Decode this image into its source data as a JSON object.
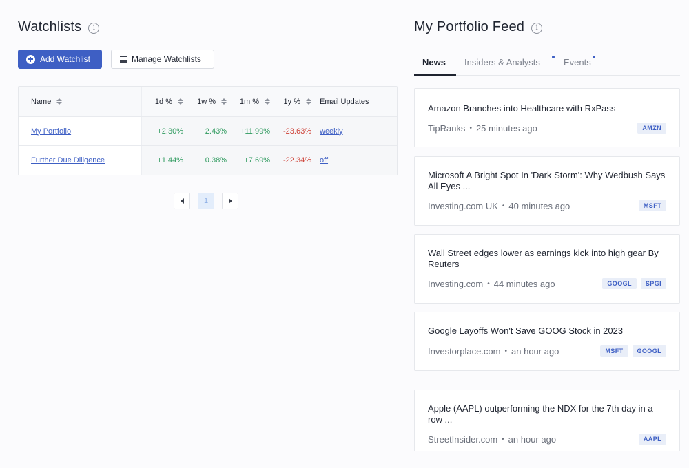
{
  "watchlists": {
    "title": "Watchlists",
    "add_button": "Add Watchlist",
    "manage_button": "Manage Watchlists",
    "columns": [
      "Name",
      "1d %",
      "1w %",
      "1m %",
      "1y %",
      "Email Updates"
    ],
    "rows": [
      {
        "name": "My Portfolio",
        "d1": "+2.30%",
        "w1": "+2.43%",
        "m1": "+11.99%",
        "y1": "-23.63%",
        "email": "weekly"
      },
      {
        "name": "Further Due Diligence",
        "d1": "+1.44%",
        "w1": "+0.38%",
        "m1": "+7.69%",
        "y1": "-22.34%",
        "email": "off"
      }
    ],
    "pagination": {
      "current_page": "1"
    }
  },
  "feed": {
    "title": "My Portfolio Feed",
    "tabs": [
      "News",
      "Insiders & Analysts",
      "Events"
    ],
    "active_tab": "News",
    "items": [
      {
        "title": "Amazon Branches into Healthcare with RxPass",
        "source": "TipRanks",
        "time": "25 minutes ago",
        "tickers": [
          "AMZN"
        ]
      },
      {
        "title": "Microsoft A Bright Spot In 'Dark Storm': Why Wedbush Says All Eyes ...",
        "source": "Investing.com UK",
        "time": "40 minutes ago",
        "tickers": [
          "MSFT"
        ]
      },
      {
        "title": "Wall Street edges lower as earnings kick into high gear By Reuters",
        "source": "Investing.com",
        "time": "44 minutes ago",
        "tickers": [
          "GOOGL",
          "SPGI"
        ]
      },
      {
        "title": "Google Layoffs Won't Save GOOG Stock in 2023",
        "source": "Investorplace.com",
        "time": "an hour ago",
        "tickers": [
          "MSFT",
          "GOOGL"
        ]
      },
      {
        "title": "Apple (AAPL) outperforming the NDX for the 7th day in a row ...",
        "source": "StreetInsider.com",
        "time": "an hour ago",
        "tickers": [
          "AAPL"
        ]
      }
    ]
  },
  "colors": {
    "accent": "#3e5fc4",
    "positive": "#2e9a5e",
    "negative": "#cc3b30",
    "badge_bg": "#e9eef8"
  },
  "icons": {
    "info": "info-icon",
    "add": "plus-circle-icon",
    "manage": "list-icon",
    "sort": "sort-icon",
    "prev": "chevron-left-icon",
    "next": "chevron-right-icon"
  }
}
